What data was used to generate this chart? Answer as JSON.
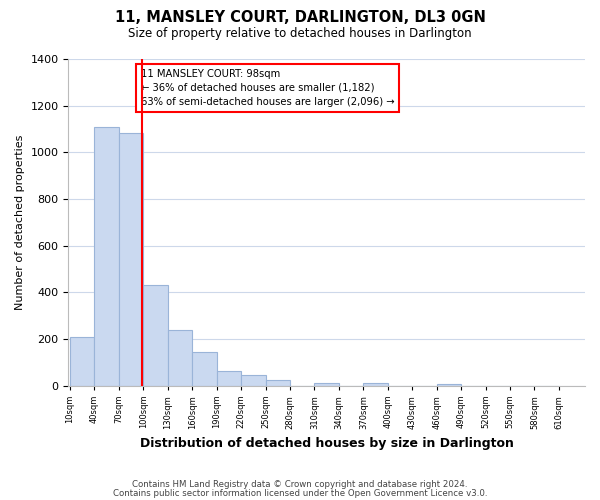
{
  "title": "11, MANSLEY COURT, DARLINGTON, DL3 0GN",
  "subtitle": "Size of property relative to detached houses in Darlington",
  "xlabel": "Distribution of detached houses by size in Darlington",
  "ylabel": "Number of detached properties",
  "bar_color": "#cad9f0",
  "bar_edge_color": "#9ab4d8",
  "bin_edges": [
    10,
    40,
    70,
    100,
    130,
    160,
    190,
    220,
    250,
    280,
    310,
    340,
    370,
    400,
    430,
    460,
    490,
    520,
    550,
    580,
    610
  ],
  "bar_heights": [
    210,
    1110,
    1085,
    430,
    240,
    143,
    63,
    48,
    25,
    0,
    13,
    0,
    10,
    0,
    0,
    8,
    0,
    0,
    0,
    0
  ],
  "property_value": 98,
  "annotation_text_title": "11 MANSLEY COURT: 98sqm",
  "annotation_text_line2": "← 36% of detached houses are smaller (1,182)",
  "annotation_text_line3": "63% of semi-detached houses are larger (2,096) →",
  "ylim": [
    0,
    1400
  ],
  "yticks": [
    0,
    200,
    400,
    600,
    800,
    1000,
    1200,
    1400
  ],
  "footer_line1": "Contains HM Land Registry data © Crown copyright and database right 2024.",
  "footer_line2": "Contains public sector information licensed under the Open Government Licence v3.0.",
  "background_color": "#ffffff",
  "grid_color": "#cdd8ea"
}
